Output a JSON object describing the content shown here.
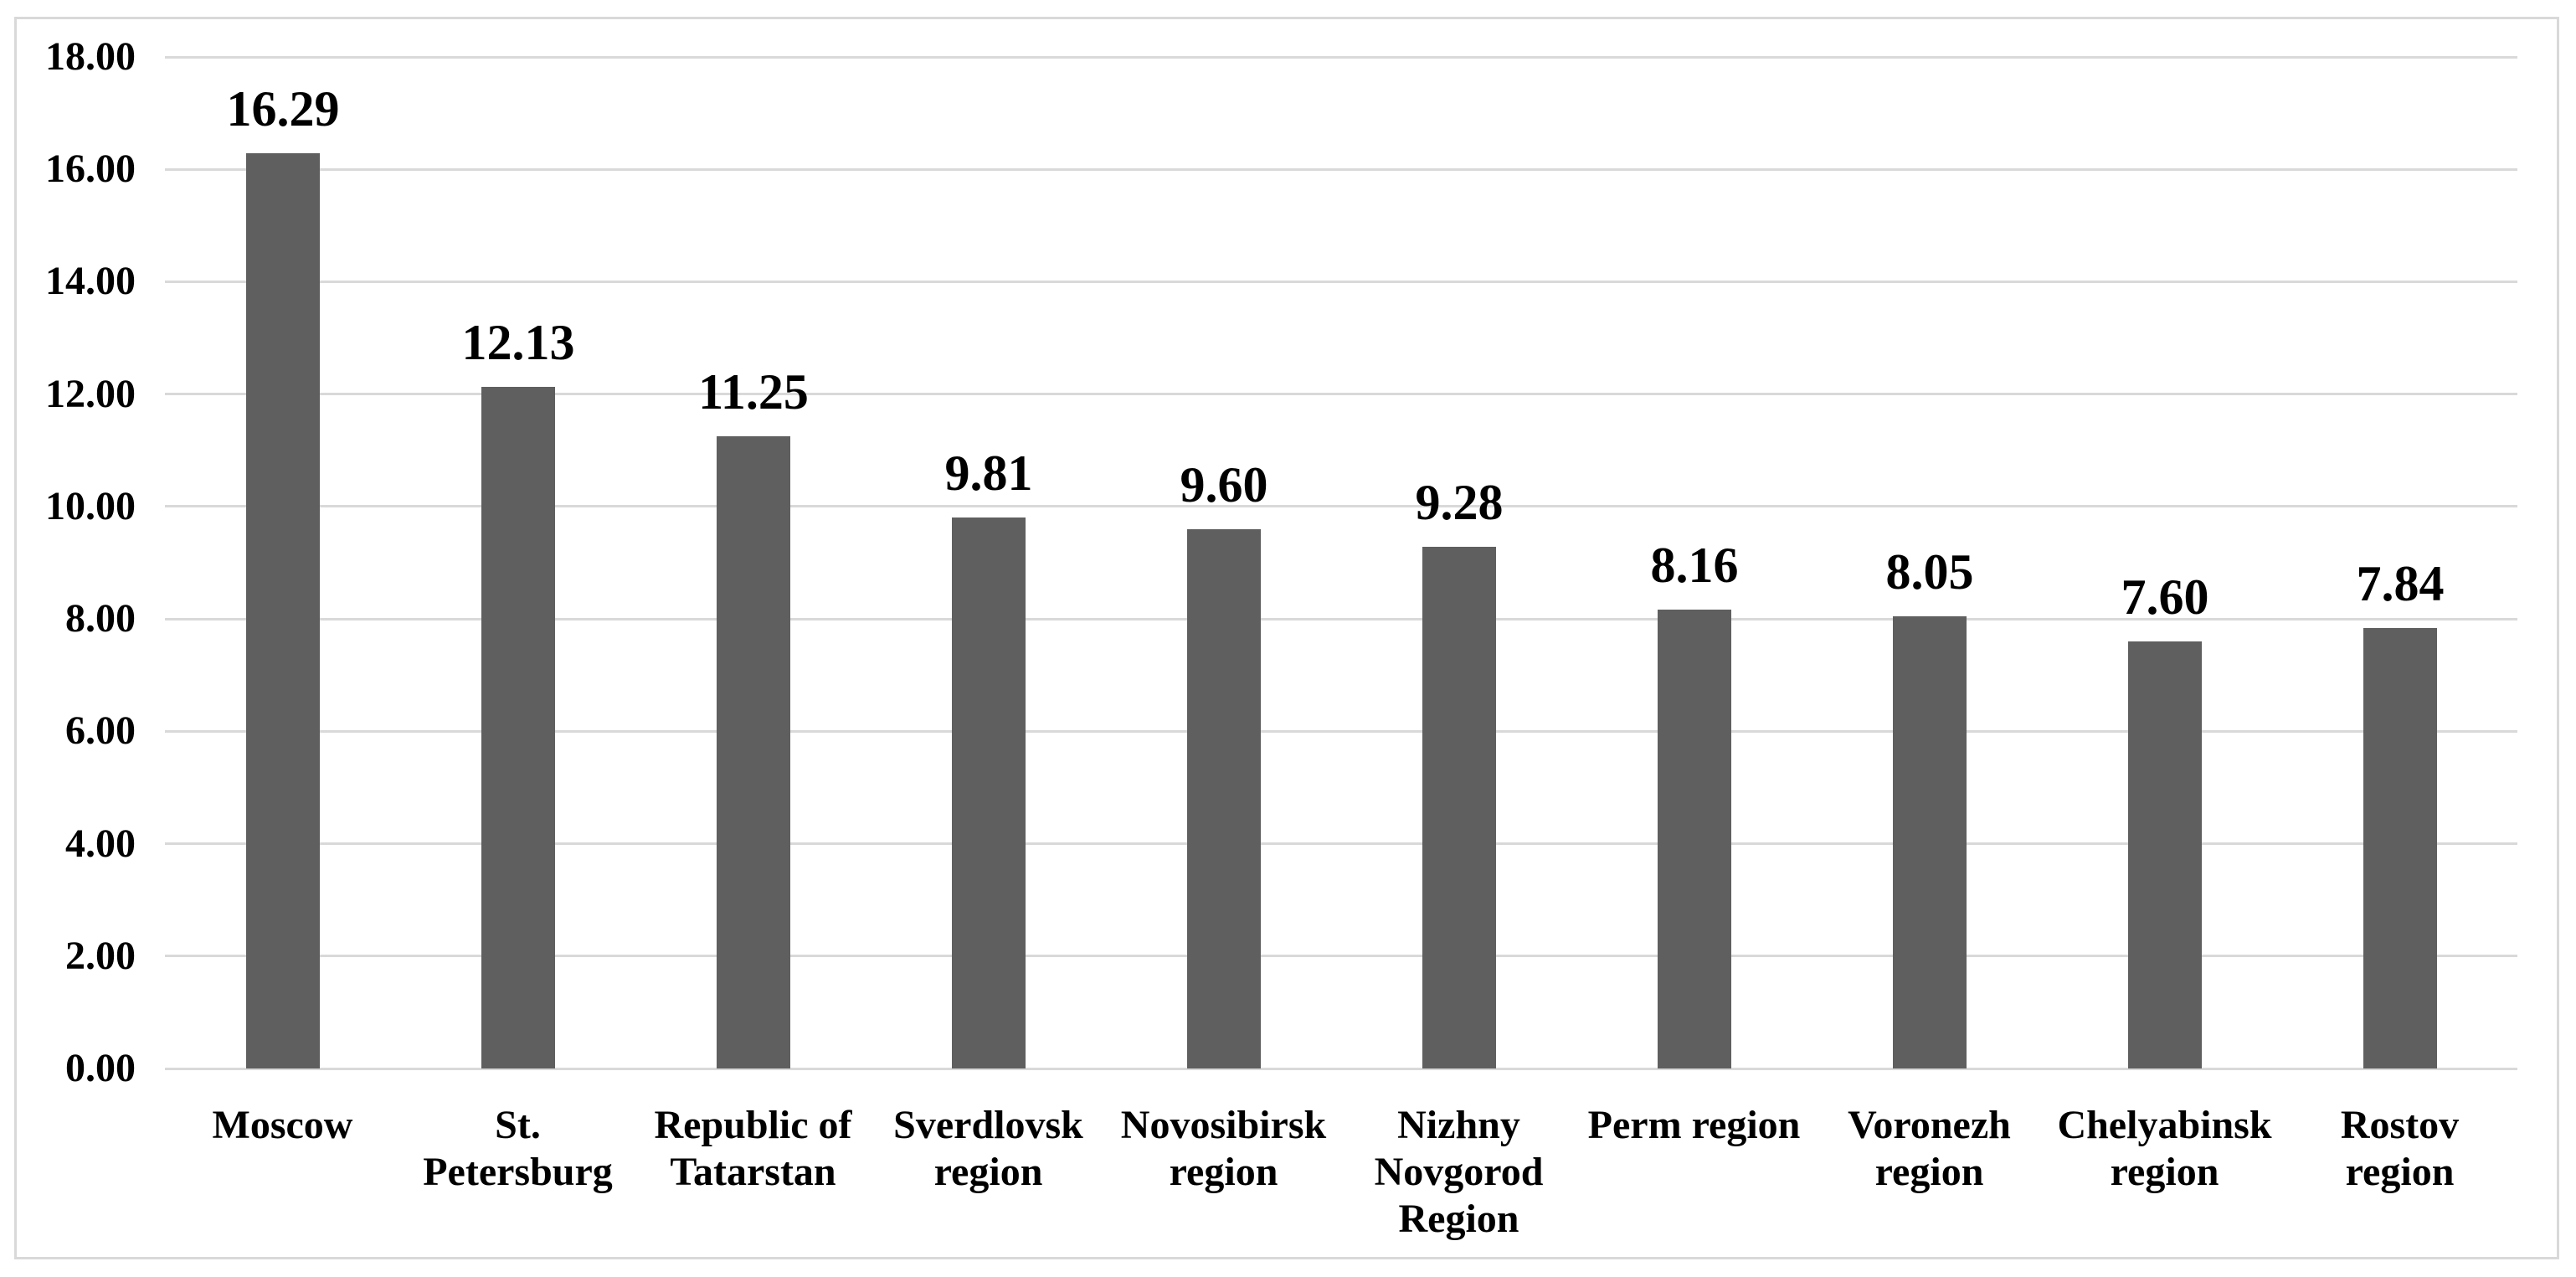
{
  "chart_data": {
    "type": "bar",
    "title": "",
    "xlabel": "",
    "ylabel": "",
    "categories": [
      "Moscow",
      "St. Petersburg",
      "Republic of Tatarstan",
      "Sverdlovsk region",
      "Novosibirsk region",
      "Nizhny Novgorod Region",
      "Perm region",
      "Voronezh region",
      "Chelyabinsk region",
      "Rostov region"
    ],
    "values": [
      16.29,
      12.13,
      11.25,
      9.81,
      9.6,
      9.28,
      8.16,
      8.05,
      7.6,
      7.84
    ],
    "value_labels": [
      "16.29",
      "12.13",
      "11.25",
      "9.81",
      "9.60",
      "9.28",
      "8.16",
      "8.05",
      "7.60",
      "7.84"
    ],
    "x_labels_display": [
      "Moscow",
      "St.\nPetersburg",
      "Republic of\nTatarstan",
      "Sverdlovsk\nregion",
      "Novosibirsk\nregion",
      "Nizhny\nNovgorod\nRegion",
      "Perm region",
      "Voronezh\nregion",
      "Chelyabinsk\nregion",
      "Rostov\nregion"
    ],
    "ylim": [
      0,
      18
    ],
    "y_ticks": [
      "0.00",
      "2.00",
      "4.00",
      "6.00",
      "8.00",
      "10.00",
      "12.00",
      "14.00",
      "16.00",
      "18.00"
    ],
    "y_tick_values": [
      0,
      2,
      4,
      6,
      8,
      10,
      12,
      14,
      16,
      18
    ],
    "grid": "horizontal",
    "legend": "none",
    "colors": {
      "bar": "#5f5f5f",
      "gridline": "#d9d9d9",
      "frame_border": "#d9d9d9",
      "text": "#000000",
      "background": "#ffffff"
    }
  }
}
